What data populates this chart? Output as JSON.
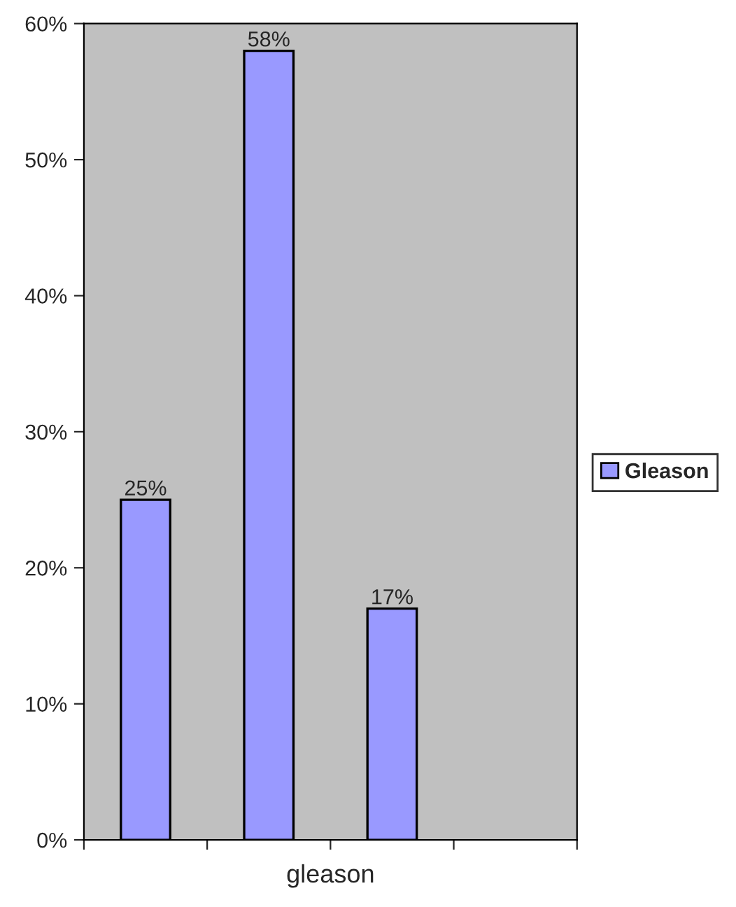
{
  "chart_data": {
    "type": "bar",
    "xlabel": "gleason",
    "categories": [
      null,
      null,
      null,
      null
    ],
    "series": [
      {
        "name": "Gleason",
        "color": "#9999ff",
        "values": [
          25,
          58,
          17,
          null
        ],
        "value_labels": [
          "25%",
          "58%",
          "17%",
          null
        ]
      }
    ],
    "ylim": [
      0,
      60
    ],
    "yticks": [
      {
        "value": 0,
        "label": "0%"
      },
      {
        "value": 10,
        "label": "10%"
      },
      {
        "value": 20,
        "label": "20%"
      },
      {
        "value": 30,
        "label": "30%"
      },
      {
        "value": 40,
        "label": "40%"
      },
      {
        "value": 50,
        "label": "50%"
      },
      {
        "value": 60,
        "label": "60%"
      }
    ],
    "legend": "right",
    "grid": false
  }
}
